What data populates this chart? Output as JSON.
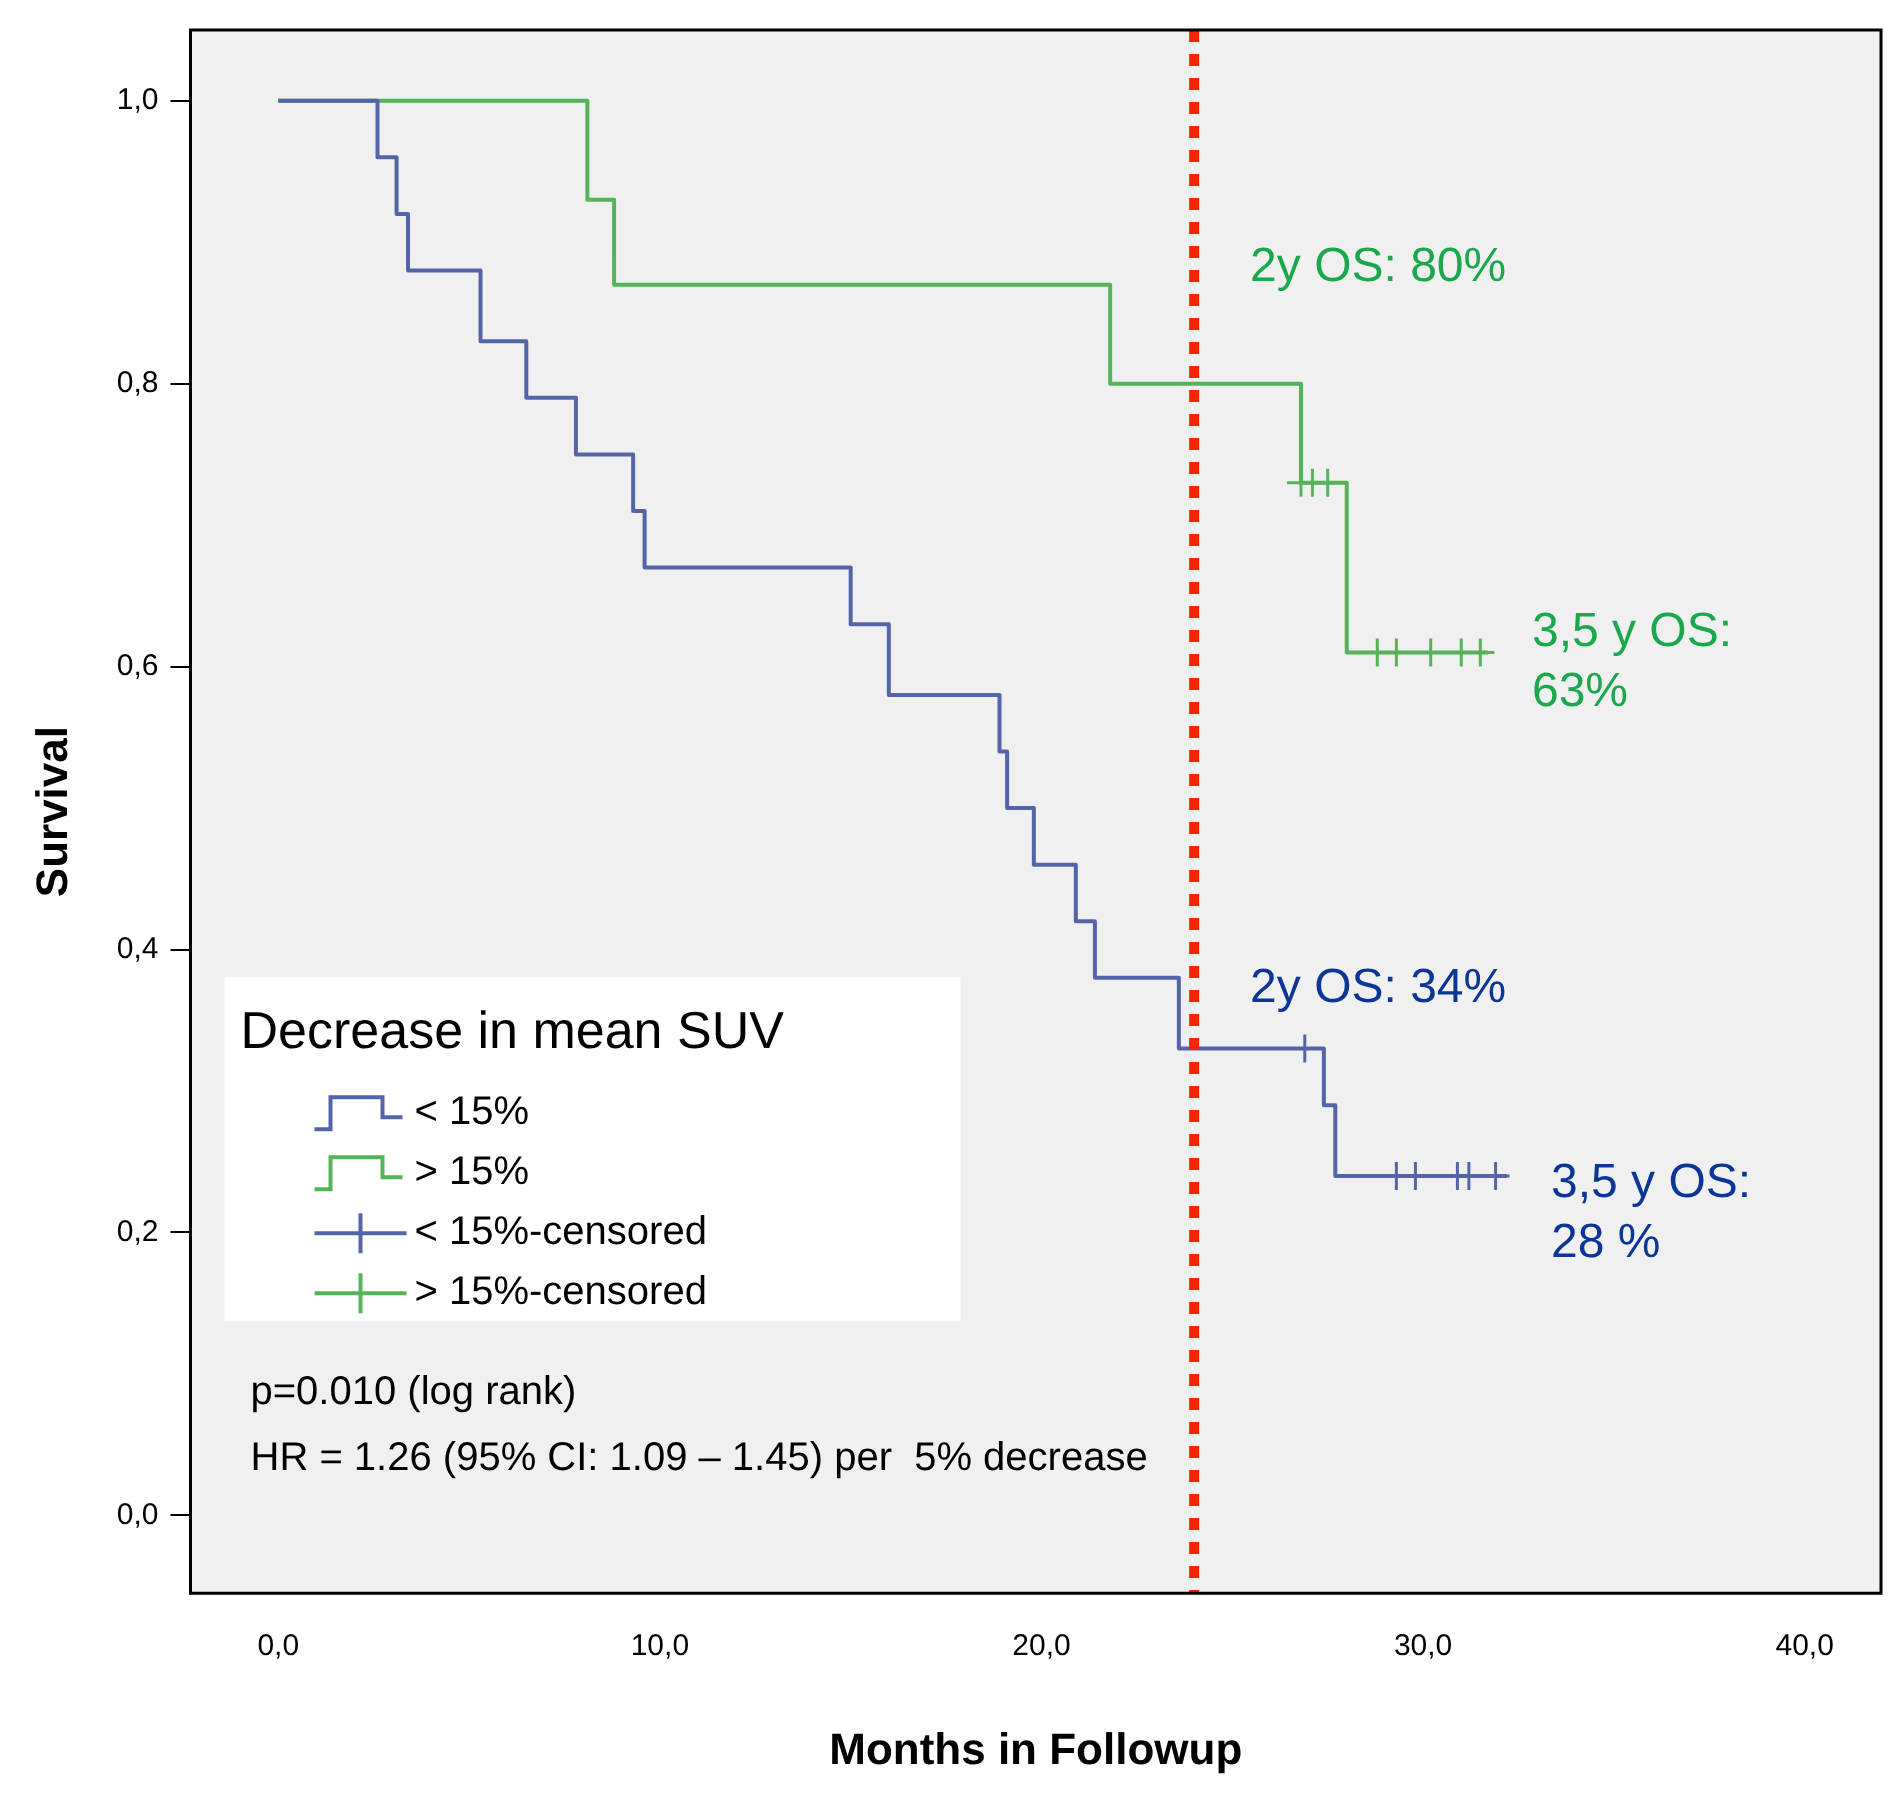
{
  "chart_data": {
    "type": "step",
    "xlabel": "Months in Followup",
    "ylabel": "Survival",
    "legend_title": "Decrease in mean SUV",
    "legend": "bottom left",
    "grid": false,
    "xlim": [
      -2.3,
      42
    ],
    "xticks": [
      {
        "value": 0,
        "label": "0,0"
      },
      {
        "value": 10,
        "label": "10,0"
      },
      {
        "value": 20,
        "label": "20,0"
      },
      {
        "value": 30,
        "label": "30,0"
      },
      {
        "value": 40,
        "label": "40,0"
      }
    ],
    "ylim": [
      -0.055,
      1.05
    ],
    "yticks": [
      {
        "value": 0,
        "label": "0,0"
      },
      {
        "value": 0.2,
        "label": "0,2"
      },
      {
        "value": 0.4,
        "label": "0,4"
      },
      {
        "value": 0.6,
        "label": "0,6"
      },
      {
        "value": 0.8,
        "label": "0,8"
      },
      {
        "value": 1,
        "label": "1,0"
      }
    ],
    "series": [
      {
        "name": "< 15%",
        "type": "step",
        "color": "#5564a8",
        "x": [
          0,
          2.6,
          3.1,
          3.4,
          5.3,
          6.5,
          7.8,
          9.3,
          9.6,
          15.0,
          16.0,
          18.9,
          19.1,
          19.8,
          20.9,
          21.4,
          23.6,
          27.4,
          27.7,
          32.2
        ],
        "values": [
          1,
          0.96,
          0.92,
          0.88,
          0.83,
          0.79,
          0.75,
          0.71,
          0.67,
          0.63,
          0.58,
          0.54,
          0.5,
          0.46,
          0.42,
          0.38,
          0.33,
          0.29,
          0.24,
          0.24
        ]
      },
      {
        "name": "> 15%",
        "type": "step",
        "color": "#55b35a",
        "x": [
          0,
          8.1,
          8.8,
          21.8,
          26.8,
          28.0,
          31.7
        ],
        "values": [
          1,
          0.93,
          0.87,
          0.8,
          0.73,
          0.61,
          0.61
        ]
      },
      {
        "name": "< 15%-censored",
        "type": "scatter",
        "marker": "cross",
        "color": "#5564a8",
        "x": [
          26.9,
          29.3,
          29.8,
          30.9,
          31.2,
          31.9
        ],
        "values": [
          0.33,
          0.24,
          0.24,
          0.24,
          0.24,
          0.24
        ]
      },
      {
        "name": "> 15%-censored",
        "type": "scatter",
        "marker": "cross",
        "color": "#55b35a",
        "x": [
          26.8,
          27.1,
          27.5,
          28.8,
          29.3,
          30.2,
          31.0,
          31.5
        ],
        "values": [
          0.73,
          0.73,
          0.73,
          0.61,
          0.61,
          0.61,
          0.61,
          0.61
        ]
      }
    ],
    "ref_lines": [
      {
        "axis": "x",
        "value": 24,
        "color": "#ff2200",
        "line_style": "dotted"
      }
    ],
    "annotations": [
      {
        "text": "2y OS: 80%",
        "x": 24,
        "y": 0.8
      },
      {
        "text": "3,5 y OS:\n63%",
        "x": 31.7,
        "y": 0.61
      },
      {
        "text": "2y OS: 34%",
        "x": 24,
        "y": 0.33
      },
      {
        "text": "3,5 y OS:\n28 %",
        "x": 32.2,
        "y": 0.24
      },
      "p=0.010 (log rank)",
      "HR = 1.26 (95% CI: 1.09 – 1.45) per  5% decrease"
    ]
  }
}
